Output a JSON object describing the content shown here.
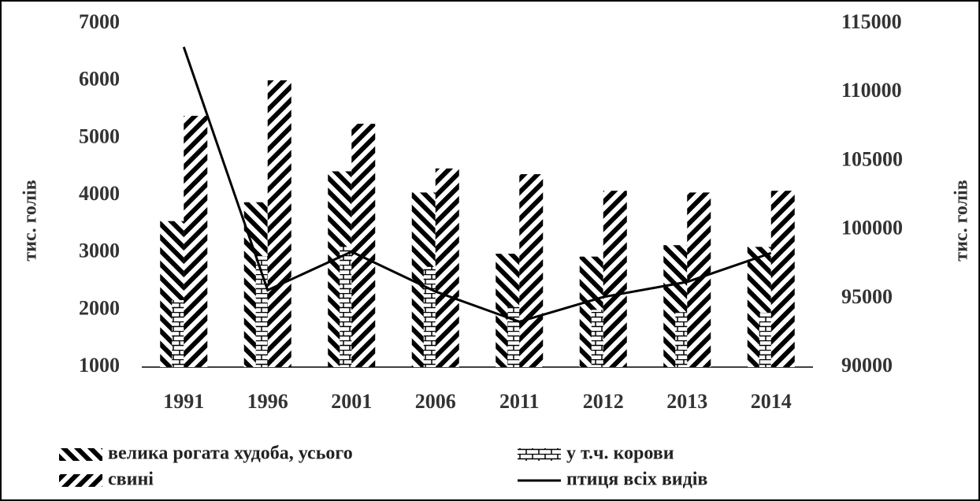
{
  "chart_data": {
    "type": "bar",
    "categories": [
      "1991",
      "1996",
      "2001",
      "2006",
      "2011",
      "2012",
      "2013",
      "2014"
    ],
    "y_label": "тис. голів",
    "y2_label": "тис. голів",
    "ylim": [
      1000,
      7000
    ],
    "yticks": [
      1000,
      2000,
      3000,
      4000,
      5000,
      6000,
      7000
    ],
    "y2lim": [
      90000,
      115000
    ],
    "y2ticks": [
      90000,
      95000,
      100000,
      105000,
      110000,
      115000
    ],
    "series": [
      {
        "name": "велика рогата  худоба, усього",
        "type": "bar",
        "color": "#000",
        "pattern": "backslash",
        "values": [
          3550,
          3880,
          4420,
          4050,
          2980,
          2930,
          3130,
          3100
        ]
      },
      {
        "name": "у т.ч. корови",
        "type": "bar",
        "color": "#000",
        "pattern": "brick",
        "values": [
          2170,
          2940,
          3100,
          2750,
          2050,
          2000,
          1960,
          1950
        ]
      },
      {
        "name": "свині",
        "type": "bar",
        "color": "#000",
        "pattern": "slash",
        "values": [
          5390,
          6010,
          5250,
          4470,
          4370,
          4080,
          4050,
          4080
        ]
      },
      {
        "name": "птиця всіх видів",
        "type": "line",
        "axis": "y2",
        "color": "#000",
        "values": [
          113300,
          95600,
          98400,
          95500,
          93300,
          95100,
          96200,
          98300
        ]
      }
    ]
  }
}
